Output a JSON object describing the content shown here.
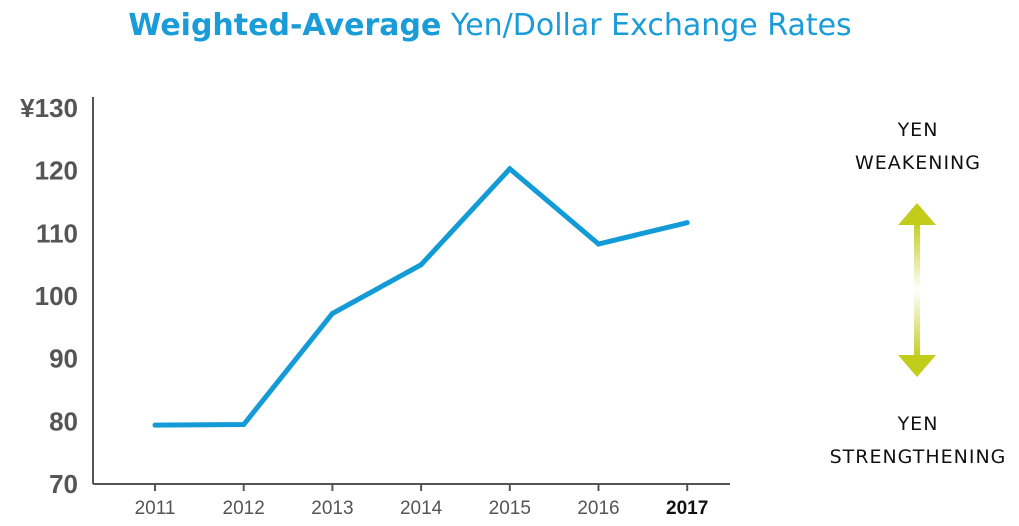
{
  "title": {
    "bold_part": "Weighted-Average",
    "rest_part": " Yen/Dollar Exchange Rates"
  },
  "side_labels": {
    "top_line1": "YEN",
    "top_line2": "WEAKENING",
    "bottom_line1": "YEN",
    "bottom_line2": "STRENGTHENING"
  },
  "colors": {
    "line": "#129bd6",
    "title": "#1a9cd8",
    "arrow": "#c2cc1a",
    "axis": "#555555"
  },
  "chart_data": {
    "type": "line",
    "title": "Weighted-Average Yen/Dollar Exchange Rates",
    "x": [
      "2011",
      "2012",
      "2013",
      "2014",
      "2015",
      "2016",
      "2017"
    ],
    "series": [
      {
        "values": [
          79.4,
          79.5,
          97.2,
          105.0,
          120.3,
          108.3,
          111.7
        ]
      }
    ],
    "y_ticks": [
      "¥130",
      "120",
      "110",
      "100",
      "90",
      "80",
      "70"
    ],
    "ylim": [
      70,
      130
    ],
    "highlight_x": "2017",
    "grid": false,
    "legend": "none"
  }
}
